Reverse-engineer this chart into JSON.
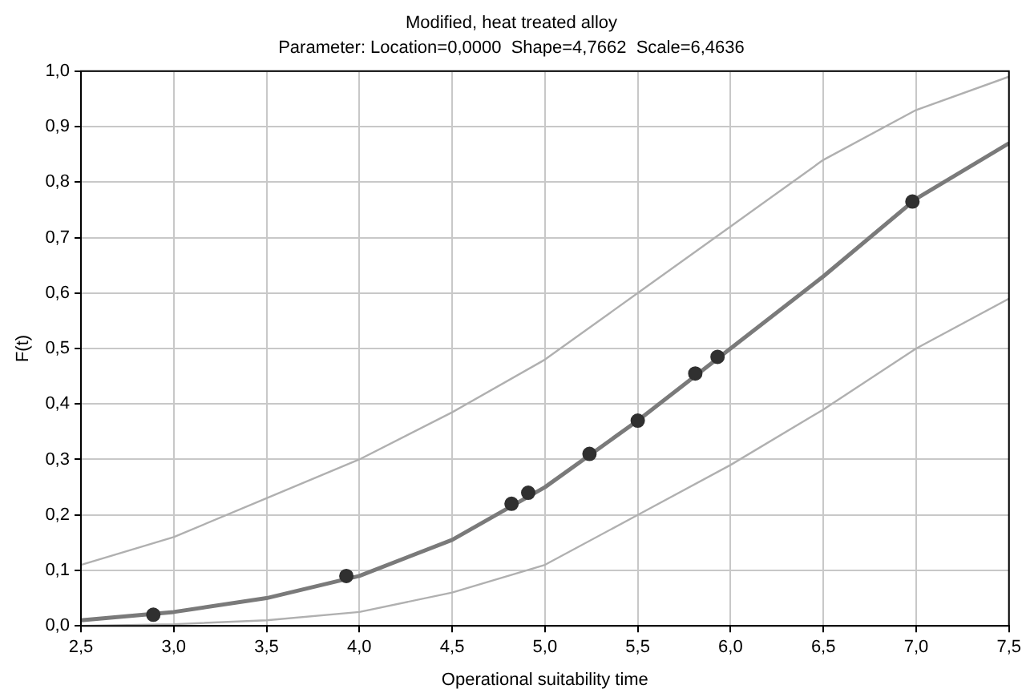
{
  "chart_data": {
    "type": "line",
    "title": "Modified, heat treated alloy",
    "subtitle": "Parameter: Location=0,0000  Shape=4,7662  Scale=6,4636",
    "xlabel": "Operational suitability time",
    "ylabel": "F(t)",
    "xlim": [
      2.5,
      7.5
    ],
    "xticks": [
      {
        "value": 2.5,
        "label": "2,5"
      },
      {
        "value": 3,
        "label": "3,0"
      },
      {
        "value": 3.5,
        "label": "3,5"
      },
      {
        "value": 4,
        "label": "4,0"
      },
      {
        "value": 4.5,
        "label": "4,5"
      },
      {
        "value": 5,
        "label": "5,0"
      },
      {
        "value": 5.5,
        "label": "5,5"
      },
      {
        "value": 6,
        "label": "6,0"
      },
      {
        "value": 6.5,
        "label": "6,5"
      },
      {
        "value": 7,
        "label": "7,0"
      },
      {
        "value": 7.5,
        "label": "7,5"
      }
    ],
    "ylim": [
      0,
      1
    ],
    "yticks": [
      {
        "value": 0,
        "label": "0,0"
      },
      {
        "value": 0.1,
        "label": "0,1"
      },
      {
        "value": 0.2,
        "label": "0,2"
      },
      {
        "value": 0.3,
        "label": "0,3"
      },
      {
        "value": 0.4,
        "label": "0,4"
      },
      {
        "value": 0.5,
        "label": "0,5"
      },
      {
        "value": 0.6,
        "label": "0,6"
      },
      {
        "value": 0.7,
        "label": "0,7"
      },
      {
        "value": 0.8,
        "label": "0,8"
      },
      {
        "value": 0.9,
        "label": "0,9"
      },
      {
        "value": 1,
        "label": "1,0"
      }
    ],
    "grid": true,
    "legend": false,
    "series": [
      {
        "color": "#b0b0b0",
        "marker": "none",
        "x": [
          2.5,
          3.0,
          3.5,
          4.0,
          4.5,
          5.0,
          5.5,
          6.0,
          6.5,
          7.0,
          7.5
        ],
        "values": [
          0.11,
          0.16,
          0.23,
          0.3,
          0.385,
          0.48,
          0.6,
          0.72,
          0.84,
          0.93,
          0.99
        ]
      },
      {
        "color": "#b0b0b0",
        "marker": "none",
        "x": [
          2.5,
          3.0,
          3.5,
          4.0,
          4.5,
          5.0,
          5.5,
          6.0,
          6.5,
          7.0,
          7.5
        ],
        "values": [
          0.0,
          0.003,
          0.01,
          0.025,
          0.06,
          0.11,
          0.2,
          0.29,
          0.39,
          0.5,
          0.59
        ]
      },
      {
        "color": "#7a7a7a",
        "marker": "none",
        "x": [
          2.5,
          3.0,
          3.5,
          4.0,
          4.5,
          5.0,
          5.5,
          6.0,
          6.5,
          7.0,
          7.5
        ],
        "values": [
          0.01,
          0.025,
          0.05,
          0.09,
          0.155,
          0.25,
          0.37,
          0.5,
          0.63,
          0.77,
          0.87
        ]
      },
      {
        "type": "scatter",
        "color": "#303030",
        "marker": "circle",
        "x": [
          2.89,
          3.93,
          4.82,
          4.91,
          5.24,
          5.5,
          5.81,
          5.93,
          6.98
        ],
        "values": [
          0.02,
          0.09,
          0.22,
          0.24,
          0.31,
          0.37,
          0.455,
          0.485,
          0.765
        ]
      }
    ]
  }
}
